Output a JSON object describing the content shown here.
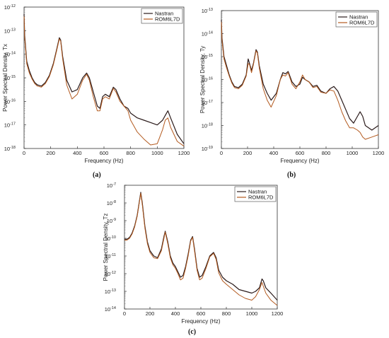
{
  "chart_data": [
    {
      "panel": "(a)",
      "type": "line",
      "xlabel": "Frequency (Hz)",
      "ylabel": "Power Spectral Density, Tx",
      "xlim": [
        0,
        1200
      ],
      "xticks": [
        0,
        200,
        400,
        600,
        800,
        1000,
        1200
      ],
      "yscale": "log",
      "ylim_exp": [
        -18,
        -12
      ],
      "legend_position": "top-right",
      "series": [
        {
          "name": "Nastran",
          "color": "#2a1a1a",
          "x": [
            0,
            5,
            20,
            40,
            60,
            80,
            100,
            130,
            160,
            190,
            220,
            245,
            265,
            275,
            290,
            320,
            360,
            400,
            440,
            470,
            490,
            520,
            550,
            570,
            590,
            610,
            640,
            670,
            690,
            720,
            750,
            780,
            800,
            850,
            900,
            950,
            1000,
            1040,
            1060,
            1080,
            1100,
            1150,
            1200
          ],
          "y": [
            -12.3,
            -13.2,
            -14.3,
            -14.7,
            -15.0,
            -15.2,
            -15.3,
            -15.35,
            -15.2,
            -14.9,
            -14.4,
            -13.8,
            -13.3,
            -13.4,
            -14.1,
            -15.1,
            -15.6,
            -15.5,
            -15.0,
            -14.8,
            -15.0,
            -15.6,
            -16.2,
            -16.3,
            -15.8,
            -15.7,
            -15.8,
            -15.4,
            -15.5,
            -15.9,
            -16.2,
            -16.3,
            -16.5,
            -16.7,
            -16.8,
            -16.9,
            -17.0,
            -16.8,
            -16.6,
            -16.4,
            -16.7,
            -17.4,
            -17.8
          ]
        },
        {
          "name": "ROM6L7D",
          "color": "#b35a1f",
          "x": [
            0,
            5,
            20,
            40,
            60,
            80,
            100,
            130,
            160,
            190,
            220,
            245,
            265,
            275,
            290,
            320,
            360,
            400,
            440,
            470,
            490,
            520,
            550,
            570,
            590,
            610,
            640,
            670,
            690,
            720,
            750,
            780,
            800,
            850,
            900,
            950,
            1000,
            1040,
            1060,
            1080,
            1100,
            1150,
            1200
          ],
          "y": [
            -12.4,
            -13.3,
            -14.4,
            -14.8,
            -15.05,
            -15.25,
            -15.35,
            -15.4,
            -15.25,
            -14.95,
            -14.45,
            -13.85,
            -13.35,
            -13.45,
            -14.2,
            -15.3,
            -15.9,
            -15.7,
            -15.1,
            -14.85,
            -15.1,
            -15.8,
            -16.4,
            -16.4,
            -15.9,
            -15.8,
            -15.9,
            -15.45,
            -15.6,
            -16.0,
            -16.2,
            -16.4,
            -16.8,
            -17.3,
            -17.6,
            -17.85,
            -17.8,
            -17.2,
            -16.8,
            -16.7,
            -17.1,
            -17.7,
            -17.9
          ]
        }
      ]
    },
    {
      "panel": "(b)",
      "type": "line",
      "xlabel": "Frequency (Hz)",
      "ylabel": "Power Spectral Density, Ty",
      "xlim": [
        0,
        1200
      ],
      "xticks": [
        0,
        200,
        400,
        600,
        800,
        1000,
        1200
      ],
      "yscale": "log",
      "ylim_exp": [
        -19,
        -13
      ],
      "legend_position": "top-right",
      "series": [
        {
          "name": "Nastran",
          "color": "#2a1a1a",
          "x": [
            0,
            5,
            20,
            40,
            60,
            80,
            100,
            130,
            160,
            190,
            205,
            215,
            230,
            245,
            265,
            275,
            290,
            320,
            350,
            380,
            420,
            450,
            470,
            490,
            510,
            540,
            570,
            600,
            620,
            640,
            670,
            700,
            730,
            760,
            800,
            830,
            860,
            890,
            920,
            950,
            980,
            1010,
            1040,
            1060,
            1080,
            1100,
            1150,
            1200
          ],
          "y": [
            -13.4,
            -14.2,
            -15.0,
            -15.4,
            -15.8,
            -16.1,
            -16.3,
            -16.35,
            -16.2,
            -15.8,
            -15.1,
            -15.3,
            -15.6,
            -15.3,
            -14.7,
            -14.8,
            -15.4,
            -16.2,
            -16.6,
            -16.9,
            -16.6,
            -16.0,
            -15.7,
            -15.75,
            -15.65,
            -16.1,
            -16.3,
            -16.2,
            -15.9,
            -16.0,
            -16.1,
            -16.3,
            -16.25,
            -16.5,
            -16.6,
            -16.4,
            -16.3,
            -16.5,
            -16.9,
            -17.3,
            -17.7,
            -17.9,
            -17.6,
            -17.4,
            -17.6,
            -18.0,
            -18.2,
            -18.0
          ]
        },
        {
          "name": "ROM6L7D",
          "color": "#b35a1f",
          "x": [
            0,
            5,
            20,
            40,
            60,
            80,
            100,
            130,
            160,
            190,
            205,
            215,
            230,
            245,
            265,
            275,
            290,
            320,
            350,
            380,
            420,
            450,
            470,
            490,
            510,
            540,
            570,
            600,
            620,
            640,
            670,
            700,
            730,
            760,
            800,
            830,
            860,
            890,
            920,
            950,
            980,
            1010,
            1040,
            1060,
            1080,
            1100,
            1150,
            1200
          ],
          "y": [
            -13.5,
            -14.3,
            -15.1,
            -15.5,
            -15.85,
            -16.15,
            -16.35,
            -16.4,
            -16.25,
            -15.85,
            -15.3,
            -15.35,
            -15.7,
            -15.35,
            -14.75,
            -14.85,
            -15.5,
            -16.4,
            -16.9,
            -17.2,
            -16.7,
            -16.0,
            -15.8,
            -15.85,
            -15.7,
            -16.2,
            -16.4,
            -16.1,
            -15.8,
            -16.0,
            -16.1,
            -16.35,
            -16.3,
            -16.55,
            -16.6,
            -16.45,
            -16.5,
            -16.9,
            -17.4,
            -17.8,
            -18.1,
            -18.1,
            -18.2,
            -18.3,
            -18.5,
            -18.6,
            -18.5,
            -18.4
          ]
        }
      ]
    },
    {
      "panel": "(c)",
      "type": "line",
      "xlabel": "Frequency (Hz)",
      "ylabel": "Power Spectral Density, Tz",
      "xlim": [
        0,
        1200
      ],
      "xticks": [
        0,
        200,
        400,
        600,
        800,
        1000,
        1200
      ],
      "yscale": "log",
      "ylim_exp": [
        -14,
        -7
      ],
      "legend_position": "top-right",
      "series": [
        {
          "name": "Nastran",
          "color": "#2a1a1a",
          "x": [
            0,
            20,
            40,
            60,
            80,
            100,
            115,
            128,
            140,
            160,
            180,
            200,
            230,
            260,
            290,
            310,
            320,
            340,
            360,
            380,
            400,
            420,
            440,
            460,
            480,
            500,
            520,
            535,
            550,
            570,
            590,
            610,
            640,
            670,
            700,
            720,
            740,
            770,
            800,
            850,
            900,
            950,
            1000,
            1030,
            1060,
            1080,
            1090,
            1110,
            1150,
            1200
          ],
          "y": [
            -10.05,
            -10.05,
            -9.95,
            -9.7,
            -9.3,
            -8.7,
            -8.0,
            -7.4,
            -8.0,
            -9.3,
            -10.2,
            -10.7,
            -11.0,
            -11.1,
            -10.6,
            -9.9,
            -9.6,
            -10.2,
            -11.0,
            -11.4,
            -11.6,
            -11.9,
            -12.2,
            -12.1,
            -11.6,
            -10.9,
            -10.1,
            -9.9,
            -10.6,
            -11.7,
            -12.2,
            -12.1,
            -11.6,
            -11.0,
            -10.8,
            -11.1,
            -11.8,
            -12.2,
            -12.4,
            -12.6,
            -12.9,
            -13.0,
            -13.1,
            -13.0,
            -12.8,
            -12.3,
            -12.4,
            -12.8,
            -13.1,
            -13.5
          ]
        },
        {
          "name": "ROM6L7D",
          "color": "#b35a1f",
          "x": [
            0,
            20,
            40,
            60,
            80,
            100,
            115,
            128,
            140,
            160,
            180,
            200,
            230,
            260,
            290,
            310,
            320,
            340,
            360,
            380,
            400,
            420,
            440,
            460,
            480,
            500,
            520,
            535,
            550,
            570,
            590,
            610,
            640,
            670,
            700,
            720,
            740,
            770,
            800,
            850,
            900,
            950,
            1000,
            1030,
            1060,
            1080,
            1090,
            1110,
            1150,
            1200
          ],
          "y": [
            -10.1,
            -10.1,
            -10.0,
            -9.75,
            -9.35,
            -8.75,
            -8.05,
            -7.45,
            -8.1,
            -9.4,
            -10.3,
            -10.8,
            -11.1,
            -11.15,
            -10.7,
            -10.0,
            -9.65,
            -10.3,
            -11.1,
            -11.5,
            -11.7,
            -12.0,
            -12.35,
            -12.25,
            -11.7,
            -11.0,
            -10.15,
            -9.95,
            -10.7,
            -11.8,
            -12.35,
            -12.25,
            -11.7,
            -11.05,
            -10.85,
            -11.2,
            -11.95,
            -12.4,
            -12.6,
            -12.9,
            -13.2,
            -13.4,
            -13.5,
            -13.3,
            -12.9,
            -12.5,
            -12.7,
            -13.1,
            -13.5,
            -13.8
          ]
        }
      ]
    }
  ]
}
